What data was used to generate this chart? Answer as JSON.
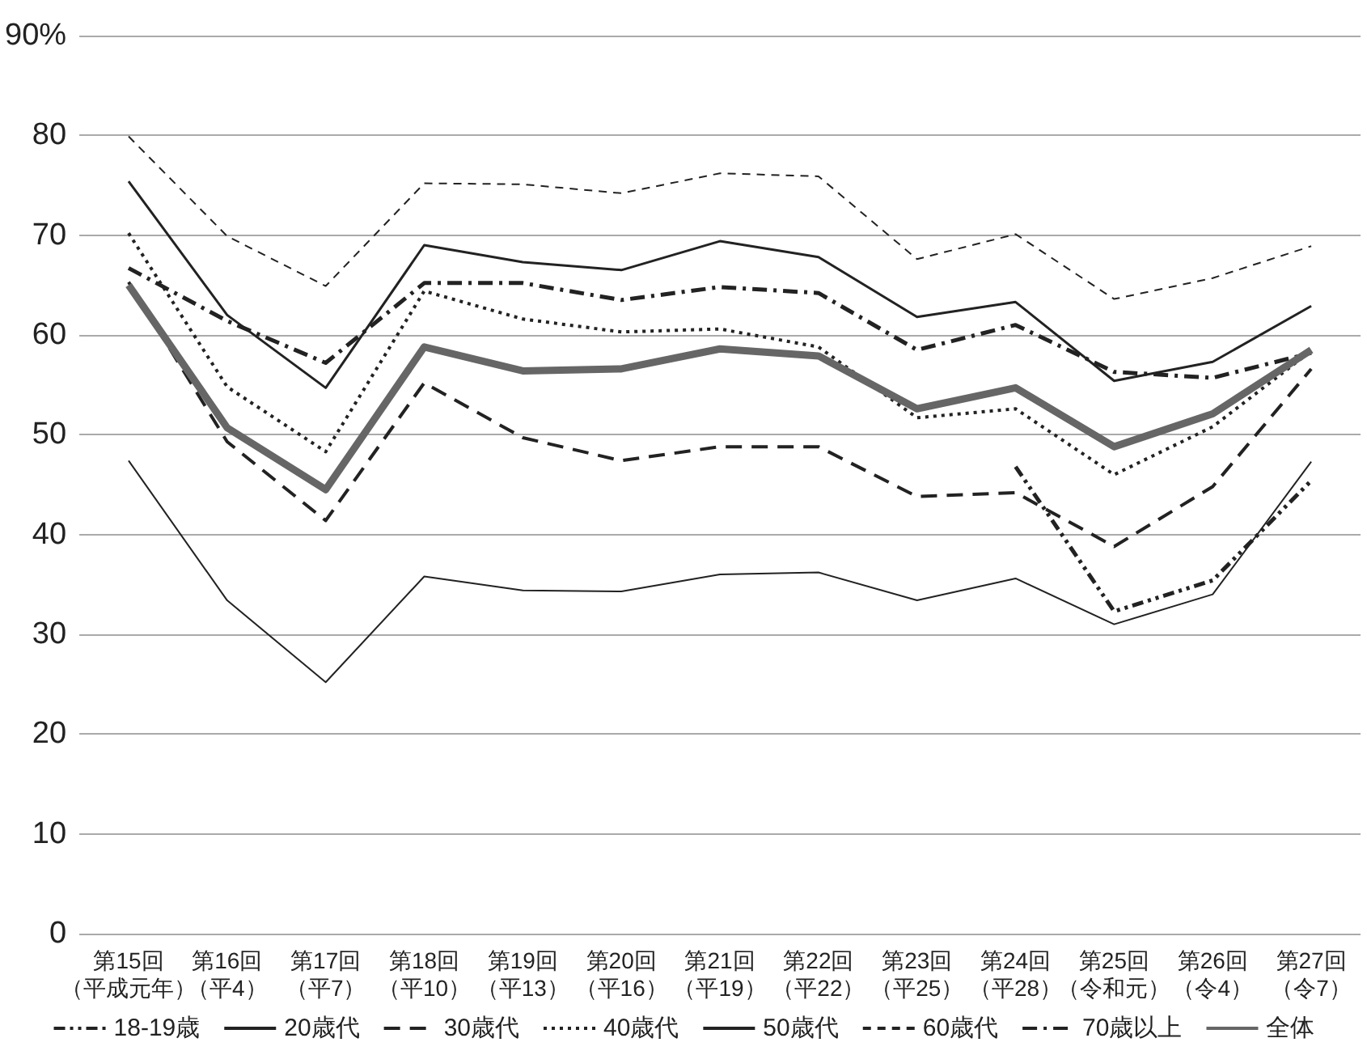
{
  "chart_data": {
    "type": "line",
    "categories": [
      "第15回（平成元年）",
      "第16回（平4）",
      "第17回（平7）",
      "第18回（平10）",
      "第19回（平13）",
      "第20回（平16）",
      "第21回（平19）",
      "第22回（平22）",
      "第23回（平25）",
      "第24回（平28）",
      "第25回（令和元）",
      "第26回（令4）",
      "第27回（令7）"
    ],
    "ylim": [
      0,
      90
    ],
    "yticks": [
      0,
      10,
      20,
      30,
      40,
      50,
      60,
      70,
      80,
      {
        "value": 90,
        "label": "90%"
      }
    ],
    "grid": "y",
    "legend": "bottom",
    "marker": "none",
    "series": [
      {
        "name": "18-19歳",
        "color": "#222222",
        "line_style": "dashdotdot",
        "values": [
          null,
          null,
          null,
          null,
          null,
          null,
          null,
          null,
          null,
          46.8,
          32.3,
          35.4,
          45.4
        ]
      },
      {
        "name": "20歳代",
        "color": "#222222",
        "line_style": "solid",
        "values": [
          47.4,
          33.4,
          25.2,
          35.8,
          34.4,
          34.3,
          36.0,
          36.2,
          33.4,
          35.6,
          31.0,
          34.0,
          47.3
        ]
      },
      {
        "name": "30歳代",
        "color": "#222222",
        "line_style": "dashed",
        "values": [
          65.3,
          49.3,
          41.4,
          55.2,
          49.7,
          47.4,
          48.8,
          48.8,
          43.8,
          44.2,
          38.8,
          44.8,
          56.6
        ]
      },
      {
        "name": "40歳代",
        "color": "#222222",
        "line_style": "dotted",
        "values": [
          70.2,
          54.8,
          48.3,
          64.4,
          61.6,
          60.3,
          60.6,
          58.8,
          51.7,
          52.6,
          46.0,
          50.8,
          58.4
        ]
      },
      {
        "name": "50歳代",
        "color": "#222222",
        "line_style": "solid",
        "values": [
          75.4,
          62.0,
          54.7,
          69.0,
          67.3,
          66.5,
          69.4,
          67.8,
          61.8,
          63.3,
          55.4,
          57.3,
          62.9
        ]
      },
      {
        "name": "60歳代",
        "color": "#222222",
        "line_style": "dashed",
        "values": [
          79.9,
          69.9,
          64.9,
          75.2,
          75.1,
          74.2,
          76.2,
          75.9,
          67.6,
          70.1,
          63.6,
          65.7,
          68.9
        ]
      },
      {
        "name": "70歳以上",
        "color": "#222222",
        "line_style": "dashdot",
        "values": [
          66.7,
          61.4,
          57.2,
          65.2,
          65.2,
          63.5,
          64.8,
          64.2,
          58.5,
          61.0,
          56.3,
          55.7,
          58.2
        ]
      },
      {
        "name": "全体",
        "color": "#666666",
        "line_style": "solid",
        "values": [
          65.0,
          50.7,
          44.5,
          58.8,
          56.4,
          56.6,
          58.6,
          57.9,
          52.6,
          54.7,
          48.8,
          52.1,
          58.5
        ]
      }
    ]
  }
}
